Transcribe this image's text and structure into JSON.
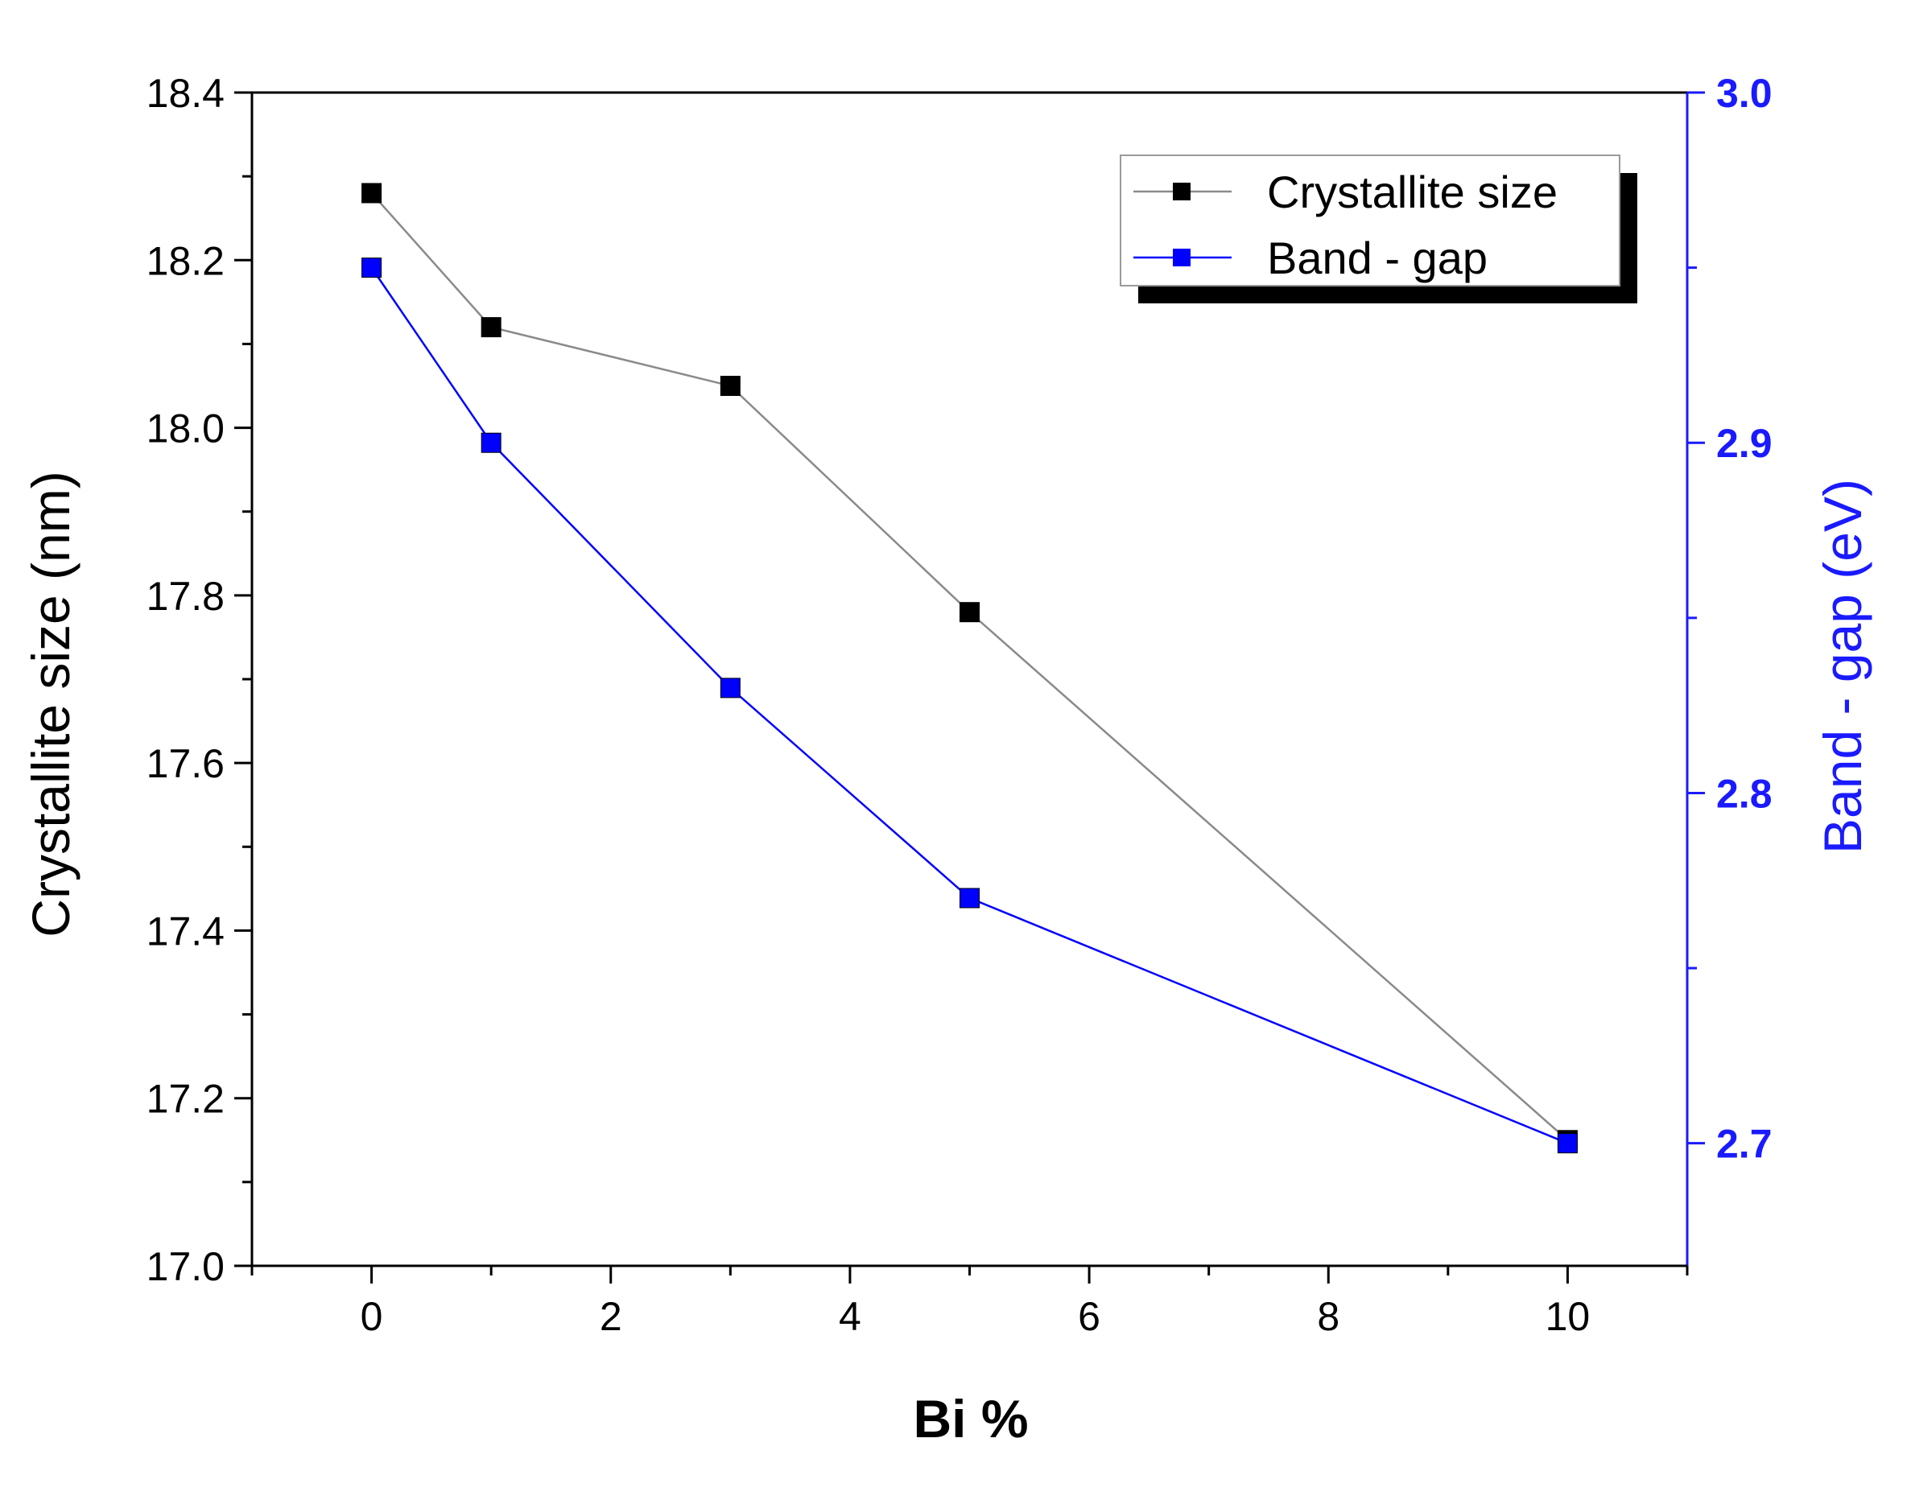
{
  "colors": {
    "left_axis": "#000000",
    "right_axis": "#1a1aff",
    "crystallite_series": "#000000",
    "crystallite_line": "#8a8a8a",
    "bandgap_series": "#0000ff",
    "legend_shadow": "#000000"
  },
  "chart_data": {
    "type": "line",
    "title": "",
    "xlabel": "Bi %",
    "ylabel": "Crystallite size (nm)",
    "y2label": "Band - gap (eV)",
    "xlim": [
      -1,
      11
    ],
    "ylim": [
      17.0,
      18.4
    ],
    "y2lim": [
      2.665,
      3.0
    ],
    "x_ticks": [
      0,
      2,
      4,
      6,
      8,
      10
    ],
    "y_ticks": [
      "17.0",
      "17.2",
      "17.4",
      "17.6",
      "17.8",
      "18.0",
      "18.2",
      "18.4"
    ],
    "y2_ticks": [
      "2.7",
      "2.8",
      "2.9",
      "3.0"
    ],
    "legend_position": "top-right",
    "series": [
      {
        "name": "Crystallite size",
        "axis": "left",
        "marker": "square",
        "x": [
          0,
          1,
          3,
          5,
          10
        ],
        "y": [
          18.28,
          18.12,
          18.05,
          17.78,
          17.15
        ]
      },
      {
        "name": "Band - gap",
        "axis": "right",
        "marker": "square",
        "x": [
          0,
          1,
          3,
          5,
          10
        ],
        "y": [
          2.95,
          2.9,
          2.83,
          2.77,
          2.7
        ]
      }
    ]
  }
}
